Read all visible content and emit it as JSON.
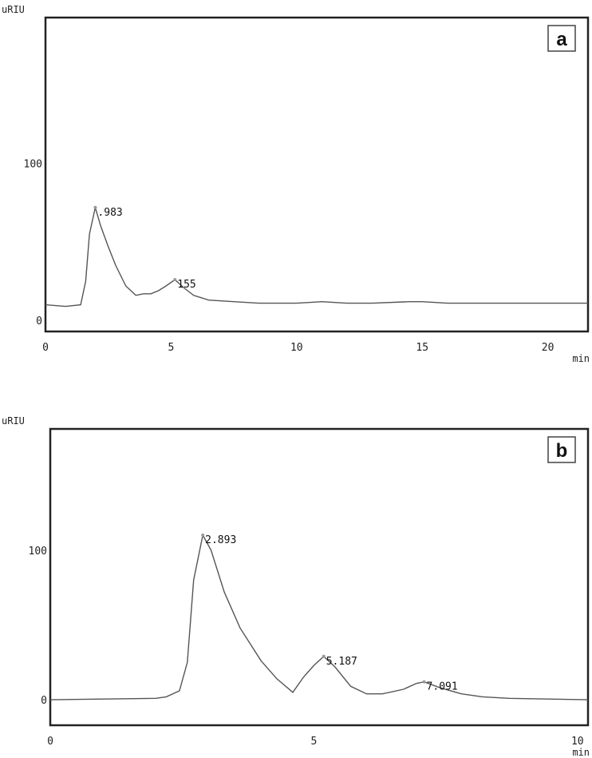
{
  "chart_data": [
    {
      "type": "line",
      "panel_label": "a",
      "ylabel": "uRIU",
      "xlabel": "min",
      "xlim": [
        0,
        21.6
      ],
      "ylim": [
        -7,
        193
      ],
      "xticks": [
        0,
        5,
        10,
        15,
        20
      ],
      "yticks": [
        0,
        100
      ],
      "grid": false,
      "series": [
        {
          "x": [
            0,
            0.8,
            1.4,
            1.6,
            1.75,
            1.983,
            2.2,
            2.5,
            2.8,
            3.2,
            3.6,
            3.9,
            4.2,
            4.5,
            4.8,
            5.155,
            5.5,
            5.9,
            6.5,
            7.5,
            8.5,
            10,
            11,
            12,
            13,
            14.5,
            15,
            16,
            17.5,
            19,
            20.5,
            21.6
          ],
          "y": [
            10,
            9,
            10,
            25,
            55,
            72,
            60,
            47,
            35,
            22,
            16,
            17,
            17,
            19,
            22,
            26,
            21,
            16,
            13,
            12,
            11,
            11,
            12,
            11,
            11,
            12,
            12,
            11,
            11,
            11,
            11,
            11
          ]
        }
      ],
      "annotations": [
        {
          "x": 1.983,
          "y": 72,
          "text": ".983"
        },
        {
          "x": 5.155,
          "y": 26,
          "text": "155"
        }
      ],
      "line_color": "#555555"
    },
    {
      "type": "line",
      "panel_label": "b",
      "ylabel": "uRIU",
      "xlabel": "min",
      "xlim": [
        0,
        10.2
      ],
      "ylim": [
        -17,
        181
      ],
      "xticks": [
        0,
        5,
        10
      ],
      "yticks": [
        0,
        100
      ],
      "grid": false,
      "series": [
        {
          "x": [
            0,
            1,
            2,
            2.2,
            2.45,
            2.6,
            2.72,
            2.893,
            3.05,
            3.3,
            3.6,
            4.0,
            4.3,
            4.6,
            4.8,
            5.0,
            5.187,
            5.4,
            5.7,
            6.0,
            6.3,
            6.7,
            6.95,
            7.091,
            7.4,
            7.8,
            8.2,
            8.7,
            10.2
          ],
          "y": [
            0,
            0.5,
            1,
            2,
            6,
            25,
            80,
            110,
            100,
            72,
            48,
            26,
            14,
            5,
            15,
            23,
            29,
            22,
            9,
            4,
            4,
            7,
            11,
            12,
            8,
            4,
            2,
            1,
            0
          ]
        }
      ],
      "annotations": [
        {
          "x": 2.893,
          "y": 110,
          "text": "2.893"
        },
        {
          "x": 5.187,
          "y": 29,
          "text": "5.187"
        },
        {
          "x": 7.091,
          "y": 12,
          "text": "7.091"
        }
      ],
      "line_color": "#555555"
    }
  ]
}
